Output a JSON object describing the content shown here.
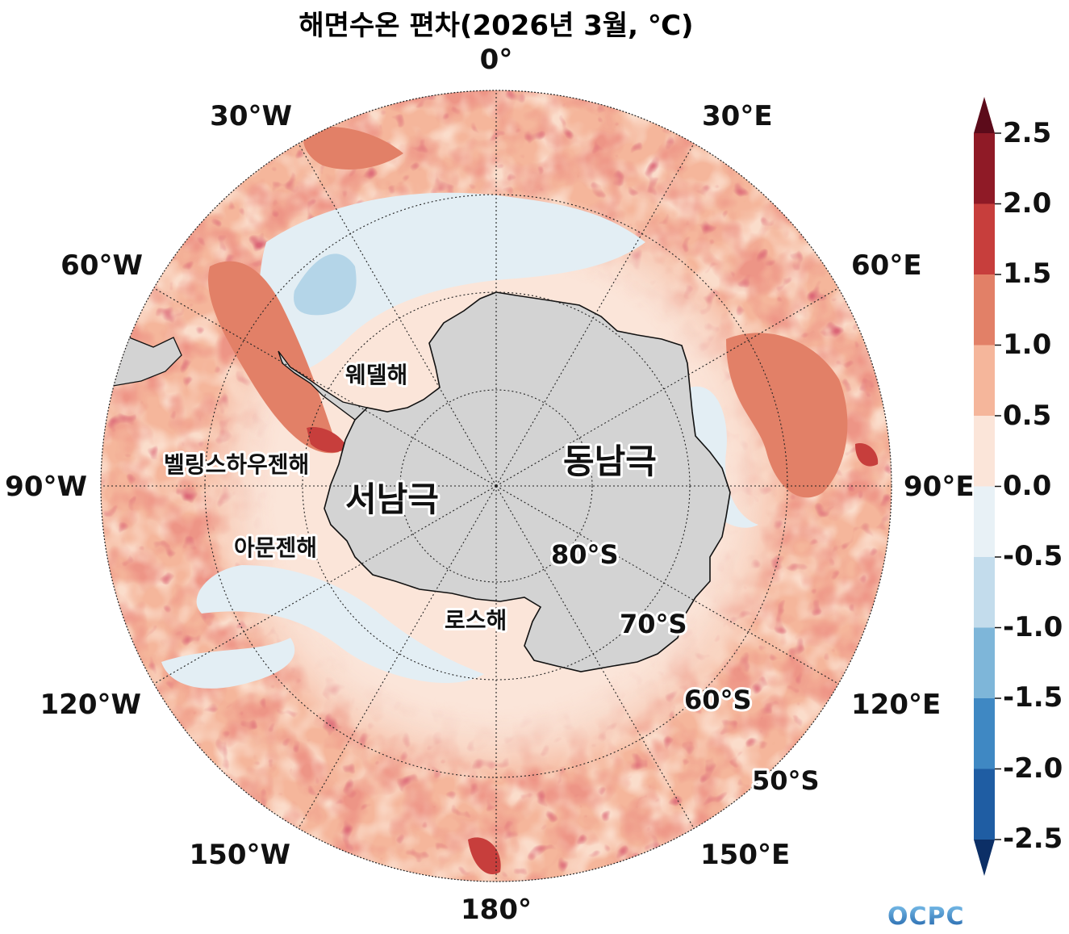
{
  "title": "해면수온 편차(2026년 3월, ℃)",
  "logo": "OCPC",
  "colors": {
    "land": "#d3d3d3",
    "levels": [
      "#0c2f66",
      "#1f5da3",
      "#3f88c3",
      "#7eb6d9",
      "#c3dcec",
      "#e8f1f6",
      "#fbe5d9",
      "#f5b69b",
      "#e28067",
      "#c73e3c",
      "#8f1a26",
      "#5c0b1a"
    ]
  },
  "map": {
    "projection": "south-polar-stereographic",
    "latitude_circles": [
      "80°S",
      "70°S",
      "60°S",
      "50°S"
    ],
    "longitude_labels": [
      "0°",
      "30°E",
      "60°E",
      "90°E",
      "120°E",
      "150°E",
      "180°",
      "150°W",
      "120°W",
      "90°W",
      "60°W",
      "30°W"
    ],
    "regions": {
      "east_antarctica": "동남극",
      "west_antarctica": "서남극",
      "weddell_sea": "웨델해",
      "bellingshausen_sea": "벨링스하우젠해",
      "amundsen_sea": "아문젠해",
      "ross_sea": "로스해"
    }
  },
  "colorbar": {
    "ticks": [
      "2.5",
      "2.0",
      "1.5",
      "1.0",
      "0.5",
      "0.0",
      "-0.5",
      "-1.0",
      "-1.5",
      "-2.0",
      "-2.5"
    ],
    "extend": "both"
  }
}
